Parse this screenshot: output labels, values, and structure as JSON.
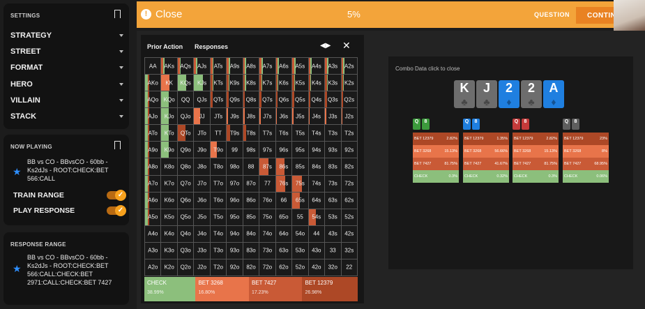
{
  "sidebar": {
    "settings_title": "SETTINGS",
    "menu": [
      "STRATEGY",
      "STREET",
      "FORMAT",
      "HERO",
      "VILLAIN",
      "STACK"
    ],
    "now_playing_title": "NOW PLAYING",
    "now_playing_spot": [
      "BB vs CO - BBvsCO - 60bb -",
      "Ks2dJs - ROOT:CHECK:BET",
      "566:CALL"
    ],
    "train_range_label": "TRAIN RANGE",
    "play_response_label": "PLAY RESPONSE",
    "response_range_title": "RESPONSE RANGE",
    "response_spot": [
      "BB vs CO - BBvsCO - 60bb -",
      "Ks2dJs - ROOT:CHECK:BET",
      "566:CALL:CHECK:BET",
      "2971:CALL:CHECK:BET 7427"
    ],
    "accent": "#f7a11d",
    "star_color": "#2e8fff"
  },
  "topbar": {
    "close_label": "Close",
    "progress": "5%",
    "question_label": "QUESTION",
    "continue_label": "CONTIN",
    "bar_color": "#f3a43a"
  },
  "range_tabs": [
    "Prior Action",
    "Responses"
  ],
  "grid": {
    "rows": [
      [
        "AA",
        "AKs",
        "AQs",
        "AJs",
        "ATs",
        "A9s",
        "A8s",
        "A7s",
        "A6s",
        "A5s",
        "A4s",
        "A3s",
        "A2s"
      ],
      [
        "AKo",
        "KK",
        "KQs",
        "KJs",
        "KTs",
        "K9s",
        "K8s",
        "K7s",
        "K6s",
        "K5s",
        "K4s",
        "K3s",
        "K2s"
      ],
      [
        "AQo",
        "KQo",
        "QQ",
        "QJs",
        "QTs",
        "Q9s",
        "Q8s",
        "Q7s",
        "Q6s",
        "Q5s",
        "Q4s",
        "Q3s",
        "Q2s"
      ],
      [
        "AJo",
        "KJo",
        "QJo",
        "JJ",
        "JTs",
        "J9s",
        "J8s",
        "J7s",
        "J6s",
        "J5s",
        "J4s",
        "J3s",
        "J2s"
      ],
      [
        "ATo",
        "KTo",
        "QTo",
        "JTo",
        "TT",
        "T9s",
        "T8s",
        "T7s",
        "T6s",
        "T5s",
        "T4s",
        "T3s",
        "T2s"
      ],
      [
        "A9o",
        "K9o",
        "Q9o",
        "J9o",
        "T9o",
        "99",
        "98s",
        "97s",
        "96s",
        "95s",
        "94s",
        "93s",
        "92s"
      ],
      [
        "A8o",
        "K8o",
        "Q8o",
        "J8o",
        "T8o",
        "98o",
        "88",
        "87s",
        "86s",
        "85s",
        "84s",
        "83s",
        "82s"
      ],
      [
        "A7o",
        "K7o",
        "Q7o",
        "J7o",
        "T7o",
        "97o",
        "87o",
        "77",
        "76s",
        "75s",
        "74s",
        "73s",
        "72s"
      ],
      [
        "A6o",
        "K6o",
        "Q6o",
        "J6o",
        "T6o",
        "96o",
        "86o",
        "76o",
        "66",
        "65s",
        "64s",
        "63s",
        "62s"
      ],
      [
        "A5o",
        "K5o",
        "Q5o",
        "J5o",
        "T5o",
        "95o",
        "85o",
        "75o",
        "65o",
        "55",
        "54s",
        "53s",
        "52s"
      ],
      [
        "A4o",
        "K4o",
        "Q4o",
        "J4o",
        "T4o",
        "94o",
        "84o",
        "74o",
        "64o",
        "54o",
        "44",
        "43s",
        "42s"
      ],
      [
        "A3o",
        "K3o",
        "Q3o",
        "J3o",
        "T3o",
        "93o",
        "83o",
        "73o",
        "63o",
        "53o",
        "43o",
        "33",
        "32s"
      ],
      [
        "A2o",
        "K2o",
        "Q2o",
        "J2o",
        "T2o",
        "92o",
        "82o",
        "72o",
        "62o",
        "52o",
        "42o",
        "32o",
        "22"
      ]
    ],
    "colors": {
      "check": "#8cbf7c",
      "bet_small": "#e8744a",
      "bet_mid": "#c95a36",
      "bet_big": "#ad4826"
    }
  },
  "legend": [
    {
      "label": "CHECK",
      "pct": "38.99%",
      "color": "#8cbf7c",
      "share": 0.24
    },
    {
      "label": "BET 3268",
      "pct": "16.80%",
      "color": "#e8744a",
      "share": 0.25
    },
    {
      "label": "BET 7427",
      "pct": "17.23%",
      "color": "#c95a36",
      "share": 0.25
    },
    {
      "label": "BET 12379",
      "pct": "26.98%",
      "color": "#ad4826",
      "share": 0.26
    }
  ],
  "combo": {
    "title": "Combo Data click to close",
    "board": [
      {
        "rank": "K",
        "suit": "♣",
        "color": "#6d6d6d"
      },
      {
        "rank": "J",
        "suit": "♣",
        "color": "#6d6d6d"
      },
      {
        "rank": "2",
        "suit": "♦",
        "color": "#1f7fe0"
      },
      {
        "rank": "2",
        "suit": "♣",
        "color": "#6d6d6d"
      },
      {
        "rank": "A",
        "suit": "♦",
        "color": "#1f7fe0"
      }
    ],
    "columns": [
      {
        "cards": [
          {
            "r": "Q",
            "c": "#3c9a3c"
          },
          {
            "r": "8",
            "c": "#3c9a3c"
          }
        ],
        "rows": [
          {
            "label": "BET 12379",
            "val": "2.82%"
          },
          {
            "label": "BET 3268",
            "val": "15.13%"
          },
          {
            "label": "BET 7427",
            "val": "81.75%"
          },
          {
            "label": "CHECK",
            "val": "0.3%"
          }
        ]
      },
      {
        "cards": [
          {
            "r": "Q",
            "c": "#1f7fe0"
          },
          {
            "r": "8",
            "c": "#1f7fe0"
          }
        ],
        "rows": [
          {
            "label": "BET 12379",
            "val": "1.35%"
          },
          {
            "label": "BET 3268",
            "val": "56.66%"
          },
          {
            "label": "BET 7427",
            "val": "41.67%"
          },
          {
            "label": "CHECK",
            "val": "0.32%"
          }
        ]
      },
      {
        "cards": [
          {
            "r": "Q",
            "c": "#c43a3a"
          },
          {
            "r": "8",
            "c": "#c43a3a"
          }
        ],
        "rows": [
          {
            "label": "BET 12379",
            "val": "2.82%"
          },
          {
            "label": "BET 3268",
            "val": "15.13%"
          },
          {
            "label": "BET 7427",
            "val": "81.75%"
          },
          {
            "label": "CHECK",
            "val": "0.3%"
          }
        ]
      },
      {
        "cards": [
          {
            "r": "Q",
            "c": "#5e5e5e"
          },
          {
            "r": "8",
            "c": "#5e5e5e"
          }
        ],
        "rows": [
          {
            "label": "BET 12379",
            "val": "23%"
          },
          {
            "label": "BET 3268",
            "val": "8%"
          },
          {
            "label": "BET 7427",
            "val": "68.95%"
          },
          {
            "label": "CHECK",
            "val": "0.06%"
          }
        ]
      }
    ]
  }
}
